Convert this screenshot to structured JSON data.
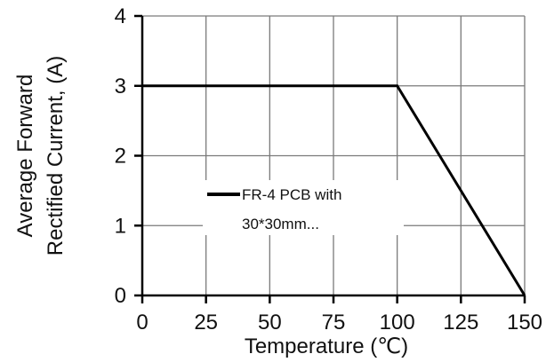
{
  "chart_data": {
    "type": "line",
    "xlabel": "Temperature (℃)",
    "ylabel_lines": [
      "Average Forward",
      "Rectified Current, (A)"
    ],
    "xlim": [
      0,
      150
    ],
    "ylim": [
      0,
      4
    ],
    "x_ticks": [
      0,
      25,
      50,
      75,
      100,
      125,
      150
    ],
    "y_ticks": [
      0,
      1,
      2,
      3,
      4
    ],
    "grid": true,
    "legend_position": "center",
    "series": [
      {
        "name_lines": [
          "FR-4 PCB with",
          "30*30mm..."
        ],
        "x": [
          0,
          100,
          150
        ],
        "y": [
          3,
          3,
          0
        ],
        "color": "#000000"
      }
    ]
  }
}
